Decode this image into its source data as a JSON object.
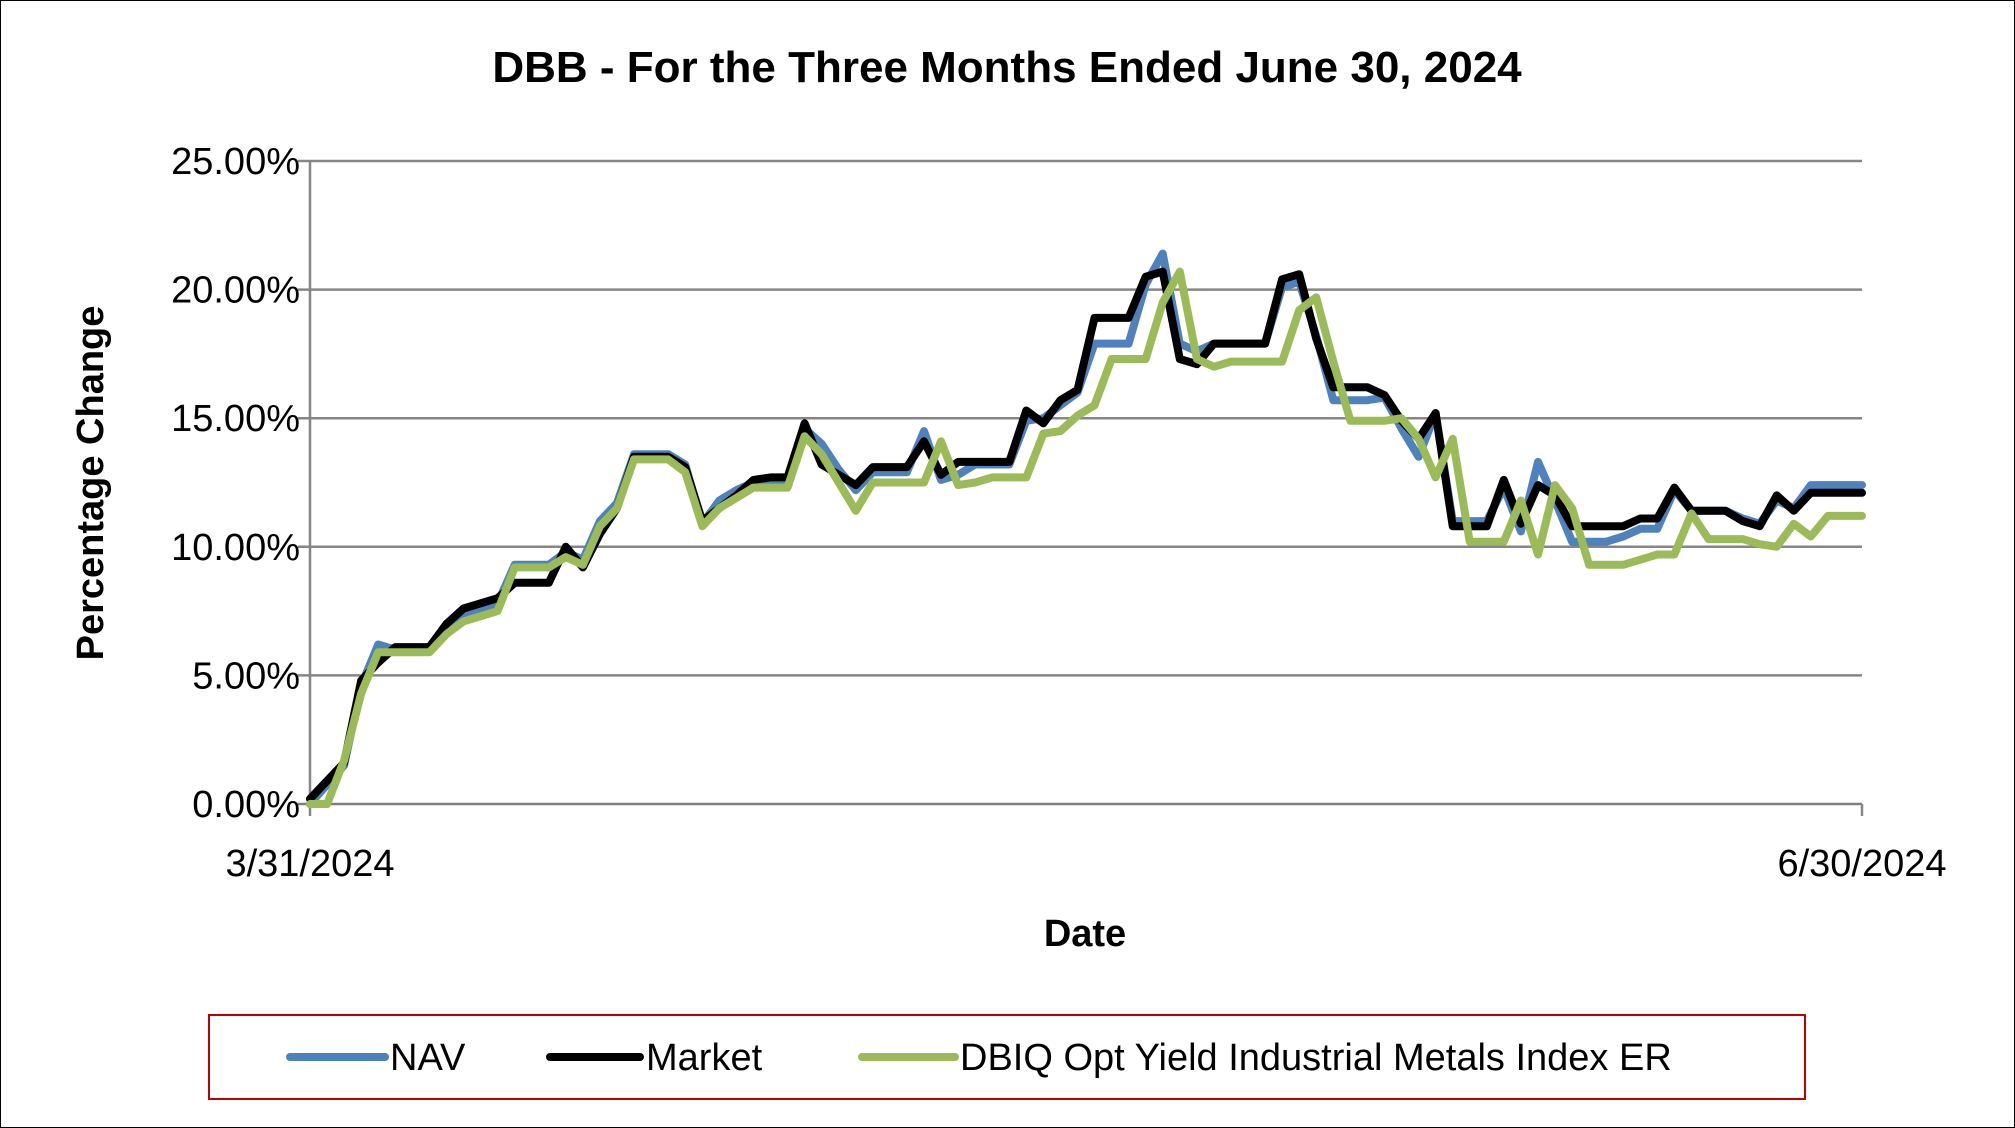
{
  "chart_data": {
    "type": "line",
    "title": "DBB - For the Three Months Ended June 30, 2024",
    "xlabel": "Date",
    "ylabel": "Percentage Change",
    "x_tick_labels": [
      "3/31/2024",
      "6/30/2024"
    ],
    "y_tick_labels": [
      "0.00%",
      "5.00%",
      "10.00%",
      "15.00%",
      "20.00%",
      "25.00%"
    ],
    "ylim": [
      0,
      25
    ],
    "xlim": [
      0,
      91
    ],
    "grid": true,
    "legend_position": "bottom",
    "series": [
      {
        "name": "NAV",
        "color": "#4F81BD",
        "points": [
          [
            0,
            0.0
          ],
          [
            2,
            1.5
          ],
          [
            3,
            4.6
          ],
          [
            4,
            6.2
          ],
          [
            5,
            6.0
          ],
          [
            7,
            6.0
          ],
          [
            8,
            6.9
          ],
          [
            9,
            7.4
          ],
          [
            11,
            7.8
          ],
          [
            12,
            9.3
          ],
          [
            14,
            9.3
          ],
          [
            15,
            9.8
          ],
          [
            16,
            9.5
          ],
          [
            17,
            11.0
          ],
          [
            18,
            11.7
          ],
          [
            19,
            13.6
          ],
          [
            21,
            13.6
          ],
          [
            22,
            13.2
          ],
          [
            23,
            10.9
          ],
          [
            24,
            11.8
          ],
          [
            25,
            12.2
          ],
          [
            26,
            12.5
          ],
          [
            28,
            12.5
          ],
          [
            29,
            14.6
          ],
          [
            30,
            14.0
          ],
          [
            31,
            13.0
          ],
          [
            32,
            12.2
          ],
          [
            33,
            12.9
          ],
          [
            35,
            12.9
          ],
          [
            36,
            14.5
          ],
          [
            37,
            12.6
          ],
          [
            38,
            12.8
          ],
          [
            39,
            13.2
          ],
          [
            41,
            13.2
          ],
          [
            42,
            14.9
          ],
          [
            43,
            15.0
          ],
          [
            44,
            15.5
          ],
          [
            45,
            16.0
          ],
          [
            46,
            17.9
          ],
          [
            48,
            17.9
          ],
          [
            49,
            20.2
          ],
          [
            50,
            21.4
          ],
          [
            51,
            17.9
          ],
          [
            52,
            17.6
          ],
          [
            53,
            17.9
          ],
          [
            56,
            17.9
          ],
          [
            57,
            20.1
          ],
          [
            58,
            20.3
          ],
          [
            59,
            18.2
          ],
          [
            60,
            15.7
          ],
          [
            62,
            15.7
          ],
          [
            63,
            15.8
          ],
          [
            64,
            14.6
          ],
          [
            65,
            13.5
          ],
          [
            66,
            15.2
          ],
          [
            67,
            11.0
          ],
          [
            69,
            11.0
          ],
          [
            70,
            12.3
          ],
          [
            71,
            10.6
          ],
          [
            72,
            13.3
          ],
          [
            73,
            11.8
          ],
          [
            74,
            10.2
          ],
          [
            76,
            10.2
          ],
          [
            77,
            10.4
          ],
          [
            78,
            10.7
          ],
          [
            79,
            10.7
          ],
          [
            80,
            12.2
          ],
          [
            81,
            11.4
          ],
          [
            83,
            11.4
          ],
          [
            84,
            11.1
          ],
          [
            85,
            10.9
          ],
          [
            86,
            11.8
          ],
          [
            87,
            11.5
          ],
          [
            88,
            12.4
          ],
          [
            91,
            12.4
          ]
        ]
      },
      {
        "name": "Market",
        "color": "#000000",
        "points": [
          [
            0,
            0.2
          ],
          [
            2,
            1.6
          ],
          [
            3,
            4.8
          ],
          [
            4,
            5.5
          ],
          [
            5,
            6.1
          ],
          [
            7,
            6.1
          ],
          [
            8,
            7.0
          ],
          [
            9,
            7.6
          ],
          [
            11,
            8.0
          ],
          [
            12,
            8.6
          ],
          [
            14,
            8.6
          ],
          [
            15,
            10.0
          ],
          [
            16,
            9.2
          ],
          [
            17,
            10.5
          ],
          [
            18,
            11.5
          ],
          [
            19,
            13.5
          ],
          [
            21,
            13.5
          ],
          [
            22,
            13.1
          ],
          [
            23,
            11.0
          ],
          [
            24,
            11.5
          ],
          [
            25,
            12.0
          ],
          [
            26,
            12.6
          ],
          [
            27,
            12.7
          ],
          [
            28,
            12.7
          ],
          [
            29,
            14.8
          ],
          [
            30,
            13.2
          ],
          [
            31,
            12.8
          ],
          [
            32,
            12.4
          ],
          [
            33,
            13.1
          ],
          [
            35,
            13.1
          ],
          [
            36,
            14.1
          ],
          [
            37,
            12.8
          ],
          [
            38,
            13.3
          ],
          [
            41,
            13.3
          ],
          [
            42,
            15.3
          ],
          [
            43,
            14.8
          ],
          [
            44,
            15.7
          ],
          [
            45,
            16.1
          ],
          [
            46,
            18.9
          ],
          [
            48,
            18.9
          ],
          [
            49,
            20.5
          ],
          [
            50,
            20.7
          ],
          [
            51,
            17.3
          ],
          [
            52,
            17.1
          ],
          [
            53,
            17.9
          ],
          [
            56,
            17.9
          ],
          [
            57,
            20.4
          ],
          [
            58,
            20.6
          ],
          [
            59,
            18.1
          ],
          [
            60,
            16.2
          ],
          [
            62,
            16.2
          ],
          [
            63,
            15.9
          ],
          [
            64,
            14.9
          ],
          [
            65,
            14.2
          ],
          [
            66,
            15.2
          ],
          [
            67,
            10.8
          ],
          [
            69,
            10.8
          ],
          [
            70,
            12.6
          ],
          [
            71,
            10.9
          ],
          [
            72,
            12.4
          ],
          [
            73,
            12.0
          ],
          [
            74,
            10.8
          ],
          [
            77,
            10.8
          ],
          [
            78,
            11.1
          ],
          [
            79,
            11.1
          ],
          [
            80,
            12.3
          ],
          [
            81,
            11.4
          ],
          [
            83,
            11.4
          ],
          [
            84,
            11.0
          ],
          [
            85,
            10.8
          ],
          [
            86,
            12.0
          ],
          [
            87,
            11.4
          ],
          [
            88,
            12.1
          ],
          [
            91,
            12.1
          ]
        ]
      },
      {
        "name": "DBIQ Opt Yield Industrial Metals Index ER",
        "color": "#9BBB59",
        "points": [
          [
            0,
            0.0
          ],
          [
            1,
            0.0
          ],
          [
            2,
            1.7
          ],
          [
            3,
            4.3
          ],
          [
            4,
            5.9
          ],
          [
            5,
            5.9
          ],
          [
            7,
            5.9
          ],
          [
            8,
            6.6
          ],
          [
            9,
            7.1
          ],
          [
            11,
            7.5
          ],
          [
            12,
            9.2
          ],
          [
            14,
            9.2
          ],
          [
            15,
            9.6
          ],
          [
            16,
            9.3
          ],
          [
            17,
            10.8
          ],
          [
            18,
            11.5
          ],
          [
            19,
            13.4
          ],
          [
            21,
            13.4
          ],
          [
            22,
            12.9
          ],
          [
            23,
            10.8
          ],
          [
            24,
            11.5
          ],
          [
            25,
            11.9
          ],
          [
            26,
            12.3
          ],
          [
            28,
            12.3
          ],
          [
            29,
            14.3
          ],
          [
            30,
            13.6
          ],
          [
            31,
            12.5
          ],
          [
            32,
            11.4
          ],
          [
            33,
            12.5
          ],
          [
            36,
            12.5
          ],
          [
            37,
            14.1
          ],
          [
            38,
            12.4
          ],
          [
            39,
            12.5
          ],
          [
            40,
            12.7
          ],
          [
            42,
            12.7
          ],
          [
            43,
            14.4
          ],
          [
            44,
            14.5
          ],
          [
            45,
            15.1
          ],
          [
            46,
            15.5
          ],
          [
            47,
            17.3
          ],
          [
            49,
            17.3
          ],
          [
            50,
            19.5
          ],
          [
            51,
            20.7
          ],
          [
            52,
            17.3
          ],
          [
            53,
            17.0
          ],
          [
            54,
            17.2
          ],
          [
            57,
            17.2
          ],
          [
            58,
            19.2
          ],
          [
            59,
            19.7
          ],
          [
            60,
            17.2
          ],
          [
            61,
            14.9
          ],
          [
            63,
            14.9
          ],
          [
            64,
            15.0
          ],
          [
            65,
            14.2
          ],
          [
            66,
            12.7
          ],
          [
            67,
            14.2
          ],
          [
            68,
            10.2
          ],
          [
            70,
            10.2
          ],
          [
            71,
            11.8
          ],
          [
            72,
            9.7
          ],
          [
            73,
            12.4
          ],
          [
            74,
            11.5
          ],
          [
            75,
            9.3
          ],
          [
            77,
            9.3
          ],
          [
            78,
            9.5
          ],
          [
            79,
            9.7
          ],
          [
            80,
            9.7
          ],
          [
            81,
            11.3
          ],
          [
            82,
            10.3
          ],
          [
            84,
            10.3
          ],
          [
            85,
            10.1
          ],
          [
            86,
            10.0
          ],
          [
            87,
            10.9
          ],
          [
            88,
            10.4
          ],
          [
            89,
            11.2
          ],
          [
            91,
            11.2
          ]
        ]
      }
    ]
  }
}
